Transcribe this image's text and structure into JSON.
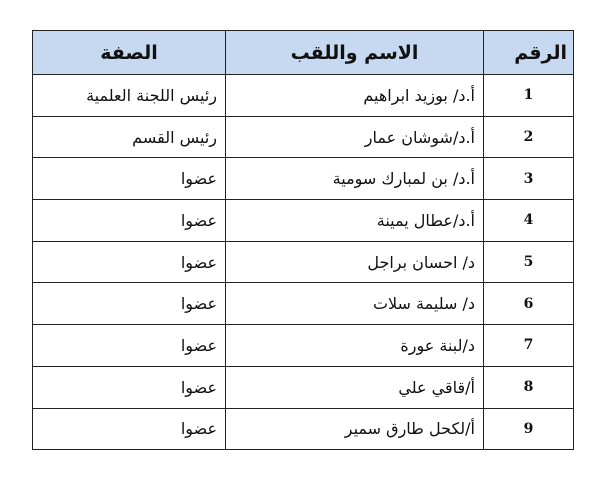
{
  "table": {
    "headers": {
      "number": "الرقم",
      "name": "الاسم واللقب",
      "role": "الصفة"
    },
    "rows": [
      {
        "number": "1",
        "name": "أ.د/ بوزيد ابراهيم",
        "role": "رئيس اللجنة العلمية"
      },
      {
        "number": "2",
        "name": "أ.د/شوشان عمار",
        "role": "رئيس القسم"
      },
      {
        "number": "3",
        "name": "أ.د/ بن لمبارك سومية",
        "role": "عضوا"
      },
      {
        "number": "4",
        "name": "أ.د/عطال يمينة",
        "role": "عضوا"
      },
      {
        "number": "5",
        "name": "د/ احسان براجل",
        "role": "عضوا"
      },
      {
        "number": "6",
        "name": "د/ سليمة سلات",
        "role": "عضوا"
      },
      {
        "number": "7",
        "name": "د/لبنة عورة",
        "role": "عضوا"
      },
      {
        "number": "8",
        "name": "أ/قاقي علي",
        "role": "عضوا"
      },
      {
        "number": "9",
        "name": "أ/لكحل طارق سمير",
        "role": "عضوا"
      }
    ],
    "header_color": "#c6d9f0"
  }
}
